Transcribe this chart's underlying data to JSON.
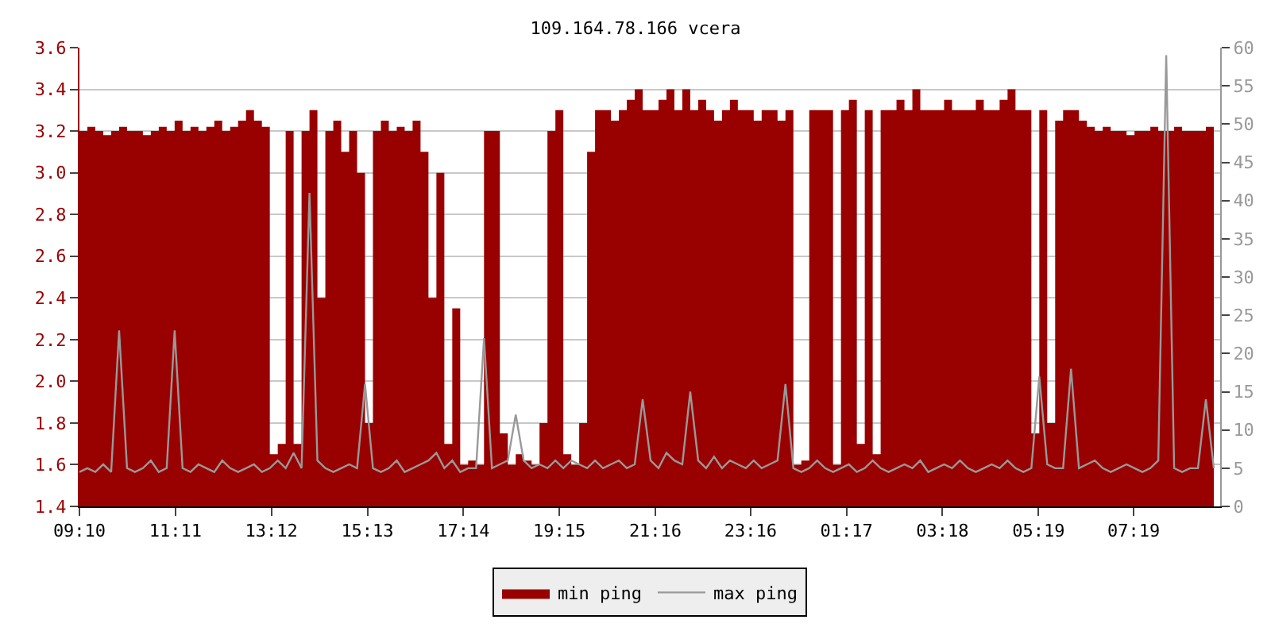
{
  "chart_data": {
    "type": "area",
    "title": "109.164.78.166 vcera",
    "x": [
      "--01-01T09:10",
      "--01-01T09:20",
      "--01-01T09:30",
      "--01-01T09:40",
      "--01-01T09:50",
      "--01-01T10:00",
      "--01-01T10:10",
      "--01-01T10:20",
      "--01-01T10:30",
      "--01-01T10:40",
      "--01-01T10:50",
      "--01-01T11:00",
      "--01-01T11:10",
      "--01-01T11:20",
      "--01-01T11:30",
      "--01-01T11:40",
      "--01-01T11:50",
      "--01-01T12:00",
      "--01-01T12:10",
      "--01-01T12:20",
      "--01-01T12:30",
      "--01-01T12:40",
      "--01-01T12:50",
      "--01-01T13:00",
      "--01-01T13:10",
      "--01-01T13:20",
      "--01-01T13:30",
      "--01-01T13:40",
      "--01-01T13:50",
      "--01-01T14:00",
      "--01-01T14:10",
      "--01-01T14:20",
      "--01-01T14:30",
      "--01-01T14:40",
      "--01-01T14:50",
      "--01-01T15:00",
      "--01-01T15:10",
      "--01-01T15:20",
      "--01-01T15:30",
      "--01-01T15:40",
      "--01-01T15:50",
      "--01-01T16:00",
      "--01-01T16:10",
      "--01-01T16:20",
      "--01-01T16:30",
      "--01-01T16:40",
      "--01-01T16:50",
      "--01-01T17:00",
      "--01-01T17:10",
      "--01-01T17:20",
      "--01-01T17:30",
      "--01-01T17:40",
      "--01-01T17:50",
      "--01-01T18:00",
      "--01-01T18:10",
      "--01-01T18:20",
      "--01-01T18:30",
      "--01-01T18:40",
      "--01-01T18:50",
      "--01-01T19:00",
      "--01-01T19:10",
      "--01-01T19:20",
      "--01-01T19:30",
      "--01-01T19:40",
      "--01-01T19:50",
      "--01-01T20:00",
      "--01-01T20:10",
      "--01-01T20:20",
      "--01-01T20:30",
      "--01-01T20:40",
      "--01-01T20:50",
      "--01-01T21:00",
      "--01-01T21:10",
      "--01-01T21:20",
      "--01-01T21:30",
      "--01-01T21:40",
      "--01-01T21:50",
      "--01-01T22:00",
      "--01-01T22:10",
      "--01-01T22:20",
      "--01-01T22:30",
      "--01-01T22:40",
      "--01-01T22:50",
      "--01-01T23:00",
      "--01-01T23:10",
      "--01-01T23:20",
      "--01-01T23:30",
      "--01-01T23:40",
      "--01-01T23:50",
      "--01-02T00:00",
      "--01-02T00:10",
      "--01-02T00:20",
      "--01-02T00:30",
      "--01-02T00:40",
      "--01-02T00:50",
      "--01-02T01:00",
      "--01-02T01:10",
      "--01-02T01:20",
      "--01-02T01:30",
      "--01-02T01:40",
      "--01-02T01:50",
      "--01-02T02:00",
      "--01-02T02:10",
      "--01-02T02:20",
      "--01-02T02:30",
      "--01-02T02:40",
      "--01-02T02:50",
      "--01-02T03:00",
      "--01-02T03:10",
      "--01-02T03:20",
      "--01-02T03:30",
      "--01-02T03:40",
      "--01-02T03:50",
      "--01-02T04:00",
      "--01-02T04:10",
      "--01-02T04:20",
      "--01-02T04:30",
      "--01-02T04:40",
      "--01-02T04:50",
      "--01-02T05:00",
      "--01-02T05:10",
      "--01-02T05:20",
      "--01-02T05:30",
      "--01-02T05:40",
      "--01-02T05:50",
      "--01-02T06:00",
      "--01-02T06:10",
      "--01-02T06:20",
      "--01-02T06:30",
      "--01-02T06:40",
      "--01-02T06:50",
      "--01-02T07:00",
      "--01-02T07:10",
      "--01-02T07:20",
      "--01-02T07:30",
      "--01-02T07:40",
      "--01-02T07:50",
      "--01-02T08:00",
      "--01-02T08:10",
      "--01-02T08:20",
      "--01-02T08:30",
      "--01-02T08:40",
      "--01-02T08:50",
      "--01-02T09:00"
    ],
    "series": [
      {
        "name": "min ping",
        "color": "#990000",
        "values": [
          3.2,
          3.22,
          3.2,
          3.18,
          3.2,
          3.22,
          3.2,
          3.2,
          3.18,
          3.2,
          3.22,
          3.2,
          3.25,
          3.2,
          3.22,
          3.2,
          3.22,
          3.25,
          3.2,
          3.22,
          3.25,
          3.3,
          3.25,
          3.22,
          1.65,
          1.7,
          3.2,
          1.7,
          3.2,
          3.3,
          2.4,
          3.2,
          3.25,
          3.1,
          3.2,
          3.0,
          1.8,
          3.2,
          3.25,
          3.2,
          3.22,
          3.2,
          3.25,
          3.1,
          2.4,
          3.0,
          1.7,
          2.35,
          1.6,
          1.62,
          1.6,
          3.2,
          3.2,
          1.75,
          1.6,
          1.65,
          1.62,
          1.6,
          1.8,
          3.2,
          3.3,
          1.65,
          1.6,
          1.8,
          3.1,
          3.3,
          3.3,
          3.25,
          3.3,
          3.35,
          3.4,
          3.3,
          3.3,
          3.35,
          3.4,
          3.3,
          3.4,
          3.3,
          3.35,
          3.3,
          3.25,
          3.3,
          3.35,
          3.3,
          3.3,
          3.25,
          3.3,
          3.3,
          3.25,
          3.3,
          1.6,
          1.62,
          3.3,
          3.3,
          3.3,
          1.6,
          3.3,
          3.35,
          1.7,
          3.3,
          1.65,
          3.3,
          3.3,
          3.35,
          3.3,
          3.4,
          3.3,
          3.3,
          3.3,
          3.35,
          3.3,
          3.3,
          3.3,
          3.35,
          3.3,
          3.3,
          3.35,
          3.4,
          3.3,
          3.3,
          1.75,
          3.3,
          1.8,
          3.25,
          3.3,
          3.3,
          3.25,
          3.22,
          3.2,
          3.22,
          3.2,
          3.2,
          3.18,
          3.2,
          3.2,
          3.22,
          3.2,
          3.2,
          3.22,
          3.2,
          3.2,
          3.2,
          3.22,
          3.2
        ]
      },
      {
        "name": "max ping",
        "color": "#999999",
        "type": "line",
        "axis": "y2",
        "values": [
          4.5,
          5,
          4.5,
          5.5,
          4.5,
          23,
          5,
          4.5,
          5,
          6,
          4.5,
          5,
          23,
          5,
          4.5,
          5.5,
          5,
          4.5,
          6,
          5,
          4.5,
          5,
          5.5,
          4.5,
          5,
          6,
          5,
          7,
          5,
          41,
          6,
          5,
          4.5,
          5,
          5.5,
          5,
          16,
          5,
          4.5,
          5,
          6,
          4.5,
          5,
          5.5,
          6,
          7,
          5,
          6,
          4.5,
          5,
          5,
          22,
          5,
          5.5,
          6,
          12,
          6,
          5,
          5.5,
          5,
          6,
          5,
          6,
          5.5,
          5,
          6,
          5,
          5.5,
          6,
          5,
          5.5,
          14,
          6,
          5,
          7,
          6,
          5.5,
          15,
          6,
          5,
          6.5,
          5,
          6,
          5.5,
          5,
          6,
          5,
          5.5,
          6,
          16,
          5,
          4.5,
          5,
          6,
          5,
          4.5,
          5,
          5.5,
          4.5,
          5,
          6,
          5,
          4.5,
          5,
          5.5,
          5,
          6,
          4.5,
          5,
          5.5,
          5,
          6,
          5,
          4.5,
          5,
          5.5,
          5,
          6,
          5,
          4.5,
          5,
          17,
          5.5,
          5,
          5,
          18,
          5,
          5.5,
          6,
          5,
          4.5,
          5,
          5.5,
          5,
          4.5,
          5,
          6,
          59,
          5,
          4.5,
          5,
          5,
          14,
          5
        ]
      }
    ],
    "xlim": [
      "--01-01T09:10",
      "--01-02T09:08"
    ],
    "xticks": [
      {
        "value": "--01-01T09:10",
        "label": "09:10"
      },
      {
        "value": "--01-01T11:11",
        "label": "11:11"
      },
      {
        "value": "--01-01T13:12",
        "label": "13:12"
      },
      {
        "value": "--01-01T15:13",
        "label": "15:13"
      },
      {
        "value": "--01-01T17:14",
        "label": "17:14"
      },
      {
        "value": "--01-01T19:15",
        "label": "19:15"
      },
      {
        "value": "--01-01T21:16",
        "label": "21:16"
      },
      {
        "value": "--01-01T23:16",
        "label": "23:16"
      },
      {
        "value": "--01-02T01:17",
        "label": "01:17"
      },
      {
        "value": "--01-02T03:18",
        "label": "03:18"
      },
      {
        "value": "--01-02T05:19",
        "label": "05:19"
      },
      {
        "value": "--01-02T07:19",
        "label": "07:19"
      }
    ],
    "ylim": [
      1.4,
      3.6
    ],
    "yticks": [
      1.4,
      1.6,
      1.8,
      {
        "value": 2.0,
        "label": "2.0"
      },
      2.2,
      2.4,
      2.6,
      2.8,
      {
        "value": 3.0,
        "label": "3.0"
      },
      3.2,
      3.4,
      3.6
    ],
    "y2lim": [
      0,
      60
    ],
    "y2ticks": [
      0,
      5,
      10,
      15,
      20,
      25,
      30,
      35,
      40,
      45,
      50,
      55,
      60
    ],
    "grid": "y",
    "legend": "bottom"
  }
}
